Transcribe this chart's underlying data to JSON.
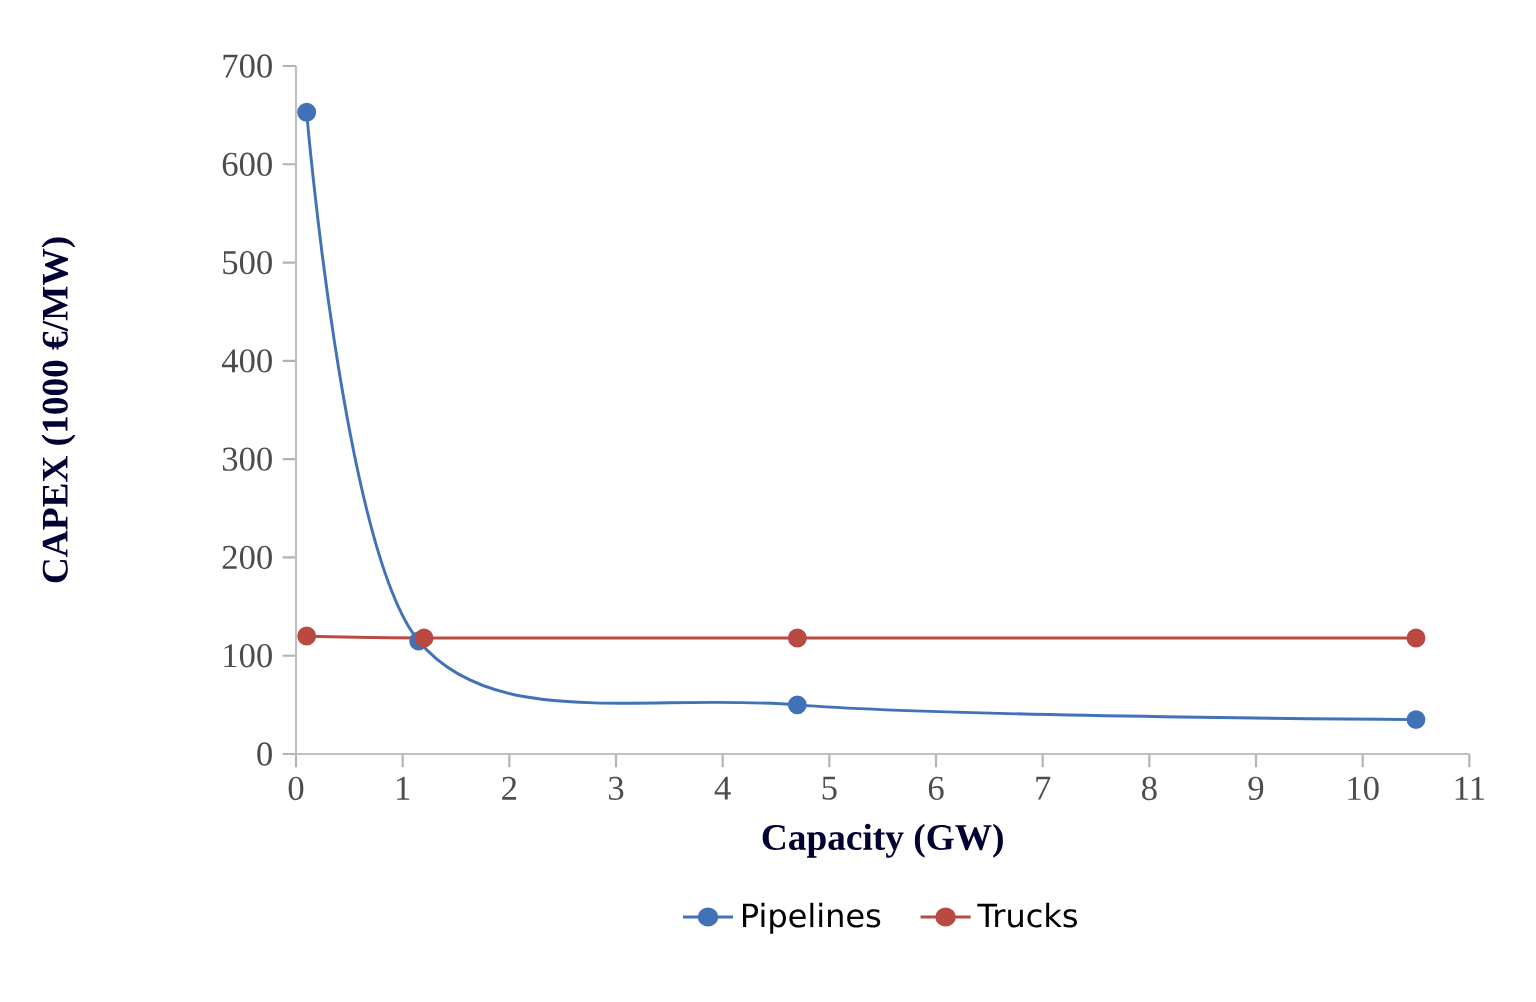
{
  "chart_data": {
    "type": "line",
    "xlabel": "Capacity (GW)",
    "ylabel": "CAPEX (1000 €/MW)",
    "xlim": [
      0,
      11
    ],
    "xticks": [
      0,
      1,
      2,
      3,
      4,
      5,
      6,
      7,
      8,
      9,
      10,
      11
    ],
    "ylim": [
      0,
      700
    ],
    "yticks": [
      0,
      100,
      200,
      300,
      400,
      500,
      600,
      700
    ],
    "marker": "circle",
    "legend": "bottom",
    "grid": false,
    "series": [
      {
        "name": "Pipelines",
        "color": "#4172b8",
        "x": [
          0.1,
          1.15,
          4.7,
          10.5
        ],
        "values": [
          653,
          115,
          50,
          35
        ]
      },
      {
        "name": "Trucks",
        "color": "#b94a43",
        "x": [
          0.1,
          1.2,
          4.7,
          10.5
        ],
        "values": [
          120,
          118,
          118,
          118
        ]
      }
    ]
  }
}
